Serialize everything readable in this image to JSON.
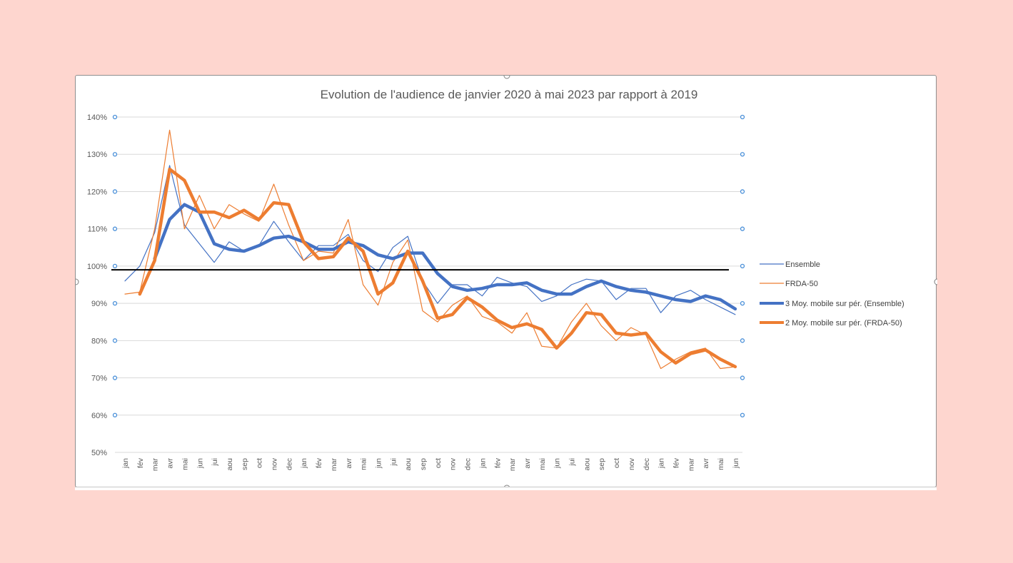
{
  "chart_data": {
    "type": "line",
    "title": "Evolution de l'audience de janvier 2020 à mai 2023 par rapport à 2019",
    "xlabel": "",
    "ylabel": "",
    "ylim": [
      50,
      140
    ],
    "y_ticks": [
      "50%",
      "60%",
      "70%",
      "80%",
      "90%",
      "100%",
      "110%",
      "120%",
      "130%",
      "140%"
    ],
    "y_tick_values": [
      50,
      60,
      70,
      80,
      90,
      100,
      110,
      120,
      130,
      140
    ],
    "reference_line": 99,
    "categories": [
      "jan",
      "fév",
      "mar",
      "avr",
      "mai",
      "jun",
      "jui",
      "aou",
      "sep",
      "oct",
      "nov",
      "dec",
      "jan",
      "fév",
      "mar",
      "avr",
      "mai",
      "jun",
      "jui",
      "aou",
      "sep",
      "oct",
      "nov",
      "dec",
      "jan",
      "fév",
      "mar",
      "avr",
      "mai",
      "jun",
      "jui",
      "aou",
      "sep",
      "oct",
      "nov",
      "dec",
      "jan",
      "fév",
      "mar",
      "avr",
      "mai",
      "jun"
    ],
    "legend_position": "right",
    "series": [
      {
        "name": "Ensemble",
        "color": "#4472c4",
        "width": 1.2,
        "values": [
          96,
          100,
          109,
          127,
          111,
          106,
          101,
          106.5,
          104,
          105.5,
          112,
          106.5,
          101.5,
          105.5,
          105.5,
          108.5,
          101.5,
          98.5,
          105,
          108,
          96,
          90,
          95,
          95,
          92,
          97,
          95.5,
          94.5,
          90.5,
          92,
          95,
          96.5,
          96,
          91,
          94,
          94,
          87.5,
          92,
          93.5,
          91,
          89,
          87
        ]
      },
      {
        "name": "FRDA-50",
        "color": "#ed7d31",
        "width": 1.2,
        "values": [
          92.5,
          93,
          110,
          136.5,
          110,
          119,
          110,
          116.5,
          114,
          112,
          122,
          111,
          101.5,
          104,
          103.5,
          112.5,
          95,
          89.5,
          101,
          107,
          88,
          85,
          89.5,
          92,
          86.5,
          85,
          82,
          87.5,
          78.5,
          78,
          85,
          90,
          84,
          80,
          83.5,
          81.5,
          72.5,
          75,
          77,
          78,
          72.5,
          73
        ]
      },
      {
        "name": "3 Moy. mobile sur pér. (Ensemble)",
        "color": "#4472c4",
        "width": 4.5,
        "values": [
          null,
          null,
          102,
          112.5,
          116.5,
          114.5,
          106,
          104.5,
          104,
          105.5,
          107.5,
          108,
          106.5,
          104.5,
          104.5,
          106.5,
          105.5,
          103,
          102,
          103.5,
          103.5,
          98,
          94.5,
          93.5,
          94,
          95,
          95,
          95.5,
          93.5,
          92.5,
          92.5,
          94.5,
          96,
          94.5,
          93.5,
          93,
          92,
          91,
          90.5,
          92,
          91,
          88.5
        ]
      },
      {
        "name": "2 Moy. mobile sur pér. (FRDA-50)",
        "color": "#ed7d31",
        "width": 4.5,
        "values": [
          null,
          92.5,
          101.5,
          126,
          123,
          114.5,
          114.5,
          113,
          115,
          112.5,
          117,
          116.5,
          106.5,
          102,
          102.5,
          107.5,
          104,
          92.5,
          95.5,
          104,
          96,
          86,
          87,
          91.5,
          89,
          85.5,
          83.5,
          84.5,
          83,
          78,
          82,
          87.5,
          87,
          82,
          81.5,
          82,
          77,
          74,
          76.5,
          77.5,
          75,
          73
        ]
      }
    ]
  }
}
